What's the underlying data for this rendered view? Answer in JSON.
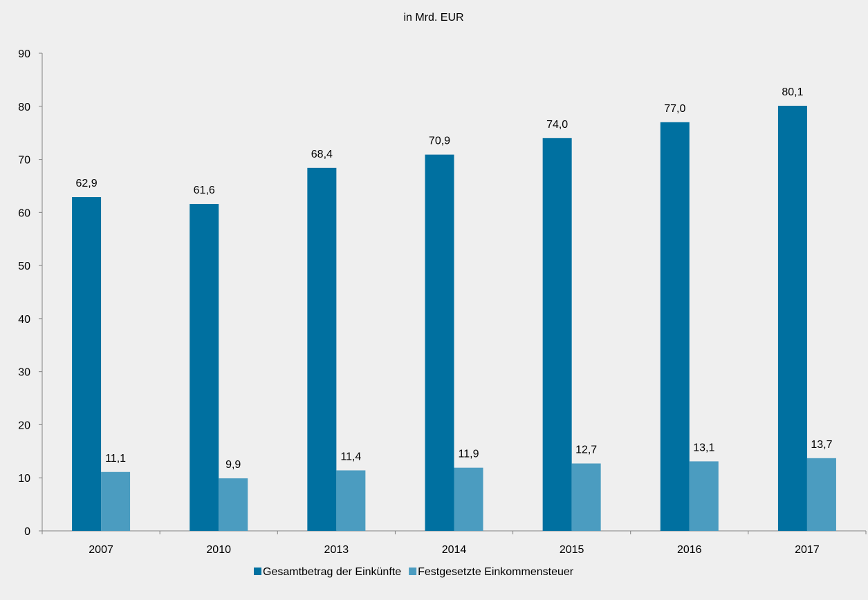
{
  "chart_data": {
    "type": "bar",
    "title": "in Mrd. EUR",
    "categories": [
      "2007",
      "2010",
      "2013",
      "2014",
      "2015",
      "2016",
      "2017"
    ],
    "series": [
      {
        "name": "Gesamtbetrag der Einkünfte",
        "color": "#0070a0",
        "values": [
          62.9,
          61.6,
          68.4,
          70.9,
          74.0,
          77.0,
          80.1
        ],
        "labels": [
          "62,9",
          "61,6",
          "68,4",
          "70,9",
          "74,0",
          "77,0",
          "80,1"
        ]
      },
      {
        "name": "Festgesetzte Einkommensteuer",
        "color": "#4b9cc0",
        "values": [
          11.1,
          9.9,
          11.4,
          11.9,
          12.7,
          13.1,
          13.7
        ],
        "labels": [
          "11,1",
          "9,9",
          "11,4",
          "11,9",
          "12,7",
          "13,1",
          "13,7"
        ]
      }
    ],
    "ylim": [
      0,
      90
    ],
    "yticks": [
      0,
      10,
      20,
      30,
      40,
      50,
      60,
      70,
      80,
      90
    ],
    "grid": false,
    "legend_position": "bottom"
  }
}
